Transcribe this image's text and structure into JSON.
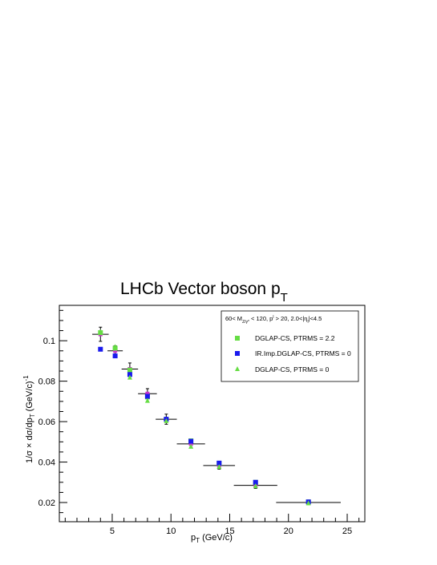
{
  "chart_data": {
    "type": "scatter",
    "title": "LHCb Vector boson p",
    "title_sub": "T",
    "xlabel": "p",
    "xlabel_sub": "T",
    "xlabel_unit": " (GeV/c)",
    "ylabel": "1/σ × dσ/dp",
    "ylabel_sub": "T",
    "ylabel_unit": " (GeV/c)",
    "ylabel_sup": "-1",
    "xlim": [
      0.5,
      26.5
    ],
    "ylim": [
      0.0105,
      0.1175
    ],
    "x_ticks": [
      5,
      10,
      15,
      20,
      25
    ],
    "y_ticks": [
      0.02,
      0.04,
      0.06,
      0.08,
      0.1
    ],
    "x_tick_labels": [
      "5",
      "10",
      "15",
      "20",
      "25"
    ],
    "y_tick_labels": [
      "0.02",
      "0.04",
      "0.06",
      "0.08",
      "0.1"
    ],
    "legend_header": {
      "p1": "60< M",
      "p1sub": "Z/γ*",
      "p2": " < 120, p",
      "p2sup": "l",
      "p3": " > 20, 2.0<|η",
      "p3sub": "l",
      "p4": "|<4.5"
    },
    "grid": false,
    "legend_position": "top-right",
    "data": {
      "x": [
        4.0,
        5.25,
        6.5,
        8.0,
        9.6,
        11.7,
        14.1,
        17.2,
        21.7
      ],
      "xerr": [
        0.7,
        0.65,
        0.7,
        0.8,
        0.9,
        1.2,
        1.35,
        1.85,
        2.75
      ],
      "y": [
        0.1032,
        0.095,
        0.086,
        0.0738,
        0.0612,
        0.049,
        0.0383,
        0.0285,
        0.02
      ],
      "yerr": [
        0.0035,
        0.0025,
        0.003,
        0.0025,
        0.0025,
        0.002,
        0.0018,
        0.0015,
        0.0008
      ],
      "color": "#cc33cc"
    },
    "series": [
      {
        "name": "DGLAP-CS, PTRMS = 2.2",
        "marker": "square",
        "color": "#66dd44",
        "x": [
          4.0,
          5.25,
          6.5,
          8.0,
          9.6,
          11.7,
          14.1,
          17.2,
          21.7
        ],
        "y": [
          0.104,
          0.0963,
          0.0855,
          0.0722,
          0.0612,
          0.0505,
          0.0394,
          0.03,
          0.0203
        ]
      },
      {
        "name": "IR.Imp.DGLAP-CS, PTRMS = 0",
        "marker": "square",
        "color": "#1a1aee",
        "x": [
          4.0,
          5.25,
          6.5,
          8.0,
          9.6,
          11.7,
          14.1,
          17.2,
          21.7
        ],
        "y": [
          0.0958,
          0.0925,
          0.0833,
          0.0725,
          0.0612,
          0.0503,
          0.0395,
          0.03,
          0.0203
        ]
      },
      {
        "name": "DGLAP-CS, PTRMS = 0",
        "marker": "triangle",
        "color": "#66dd44",
        "x": [
          4.0,
          5.25,
          6.5,
          8.0,
          9.6,
          11.7,
          14.1,
          17.2,
          21.7
        ],
        "y": [
          0.1045,
          0.0972,
          0.082,
          0.0705,
          0.0605,
          0.0478,
          0.0378,
          0.0283,
          0.0198
        ]
      }
    ]
  }
}
